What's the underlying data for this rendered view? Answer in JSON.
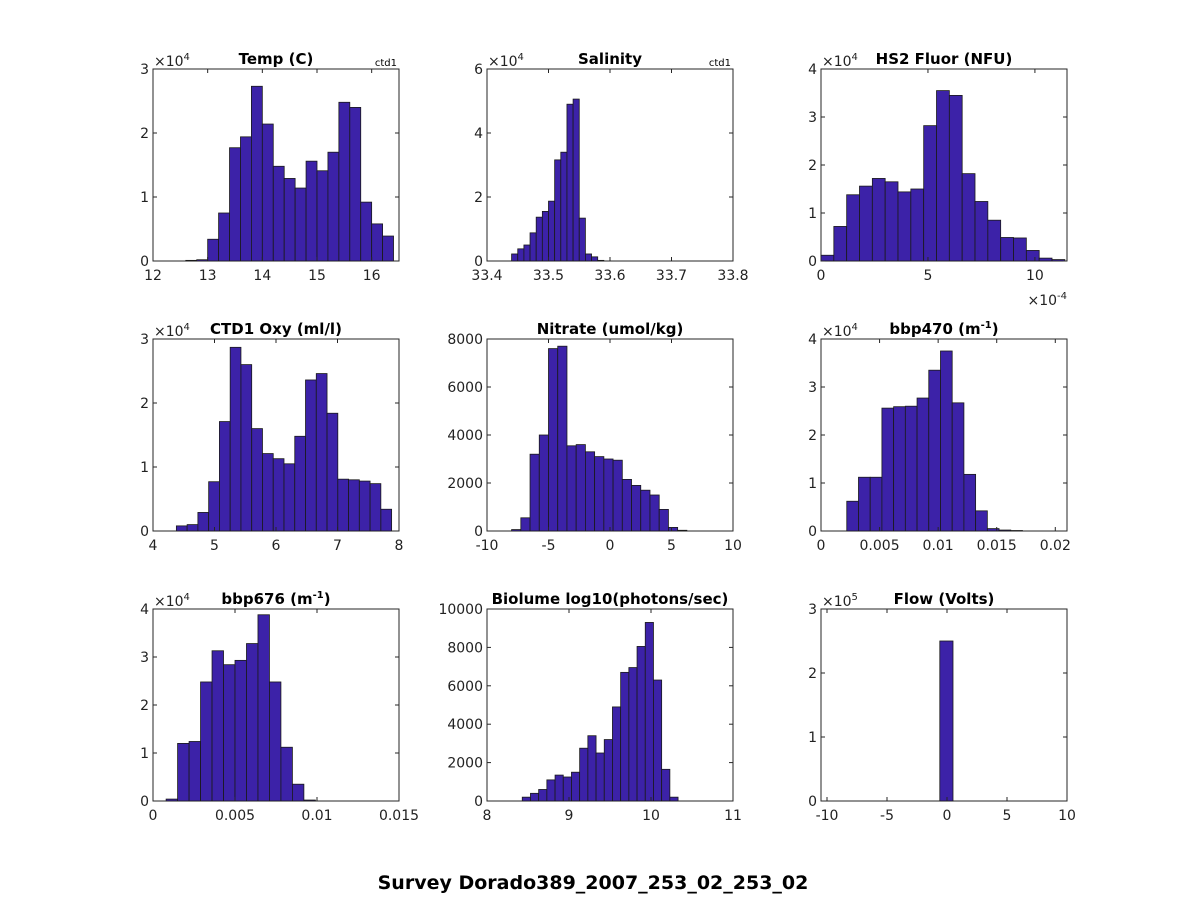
{
  "figure_title": "Survey Dorado389_2007_253_02_253_02",
  "colors": {
    "bar": "#3c22a8",
    "edge": "#1a1a1a",
    "axis": "#262626"
  },
  "chart_data": [
    {
      "type": "bar",
      "title": "Temp (C)",
      "annotation": "ctd1",
      "multiplier": "×10",
      "multiplier_exp": "4",
      "xlim": [
        12,
        16.5
      ],
      "ylim": [
        0,
        3
      ],
      "xticks": [
        12,
        13,
        14,
        15,
        16
      ],
      "xtick_labels": [
        "12",
        "13",
        "14",
        "15",
        "16"
      ],
      "yticks": [
        0,
        1,
        2,
        3
      ],
      "ytick_labels": [
        "0",
        "1",
        "2",
        "3"
      ],
      "bin_start": 12.6,
      "bin_width": 0.2,
      "values": [
        0.01,
        0.02,
        0.34,
        0.75,
        1.77,
        1.94,
        2.73,
        2.14,
        1.48,
        1.29,
        1.14,
        1.56,
        1.41,
        1.7,
        2.48,
        2.4,
        0.92,
        0.58,
        0.39
      ]
    },
    {
      "type": "bar",
      "title": "Salinity",
      "annotation": "ctd1",
      "multiplier": "×10",
      "multiplier_exp": "4",
      "xlim": [
        33.4,
        33.8
      ],
      "ylim": [
        0,
        6
      ],
      "xticks": [
        33.4,
        33.5,
        33.6,
        33.7,
        33.8
      ],
      "xtick_labels": [
        "33.4",
        "33.5",
        "33.6",
        "33.7",
        "33.8"
      ],
      "yticks": [
        0,
        2,
        4,
        6
      ],
      "ytick_labels": [
        "0",
        "2",
        "4",
        "6"
      ],
      "bin_start": 33.44,
      "bin_width": 0.01,
      "values": [
        0.22,
        0.38,
        0.5,
        0.88,
        1.37,
        1.55,
        1.87,
        3.16,
        3.4,
        4.9,
        5.06,
        1.34,
        0.22,
        0.13,
        0.02
      ]
    },
    {
      "type": "bar",
      "title": "HS2 Fluor (NFU)",
      "multiplier": "×10",
      "multiplier_exp": "4",
      "xmultiplier": "×10",
      "xmultiplier_exp": "-4",
      "xlim": [
        0,
        11.5
      ],
      "ylim": [
        0,
        4
      ],
      "xticks": [
        0,
        5,
        10
      ],
      "xtick_labels": [
        "0",
        "5",
        "10"
      ],
      "yticks": [
        0,
        1,
        2,
        3,
        4
      ],
      "ytick_labels": [
        "0",
        "1",
        "2",
        "3",
        "4"
      ],
      "bin_start": 0,
      "bin_width": 0.6,
      "values": [
        0.12,
        0.72,
        1.38,
        1.56,
        1.72,
        1.65,
        1.44,
        1.5,
        2.82,
        3.55,
        3.45,
        1.82,
        1.24,
        0.85,
        0.49,
        0.48,
        0.22,
        0.06,
        0.03
      ]
    },
    {
      "type": "bar",
      "title": "CTD1 Oxy (ml/l)",
      "multiplier": "×10",
      "multiplier_exp": "4",
      "xlim": [
        4,
        8
      ],
      "ylim": [
        0,
        3
      ],
      "xticks": [
        4,
        5,
        6,
        7,
        8
      ],
      "xtick_labels": [
        "4",
        "5",
        "6",
        "7",
        "8"
      ],
      "yticks": [
        0,
        1,
        2,
        3
      ],
      "ytick_labels": [
        "0",
        "1",
        "2",
        "3"
      ],
      "bin_start": 4.38,
      "bin_width": 0.175,
      "values": [
        0.08,
        0.1,
        0.29,
        0.77,
        1.71,
        2.87,
        2.6,
        1.6,
        1.21,
        1.13,
        1.05,
        1.48,
        2.36,
        2.46,
        1.84,
        0.81,
        0.8,
        0.78,
        0.74,
        0.34
      ]
    },
    {
      "type": "bar",
      "title": "Nitrate (umol/kg)",
      "xlim": [
        -10,
        10
      ],
      "ylim": [
        0,
        8000
      ],
      "xticks": [
        -10,
        -5,
        0,
        5,
        10
      ],
      "xtick_labels": [
        "-10",
        "-5",
        "0",
        "5",
        "10"
      ],
      "yticks": [
        0,
        2000,
        4000,
        6000,
        8000
      ],
      "ytick_labels": [
        "0",
        "2000",
        "4000",
        "6000",
        "8000"
      ],
      "bin_start": -8,
      "bin_width": 0.75,
      "values": [
        60,
        550,
        3200,
        4000,
        7600,
        7700,
        3550,
        3600,
        3300,
        3100,
        3000,
        2950,
        2150,
        1900,
        1700,
        1500,
        900,
        150,
        30
      ]
    },
    {
      "type": "bar",
      "title": "bbp470 (m",
      "title_sup": "-1",
      "title_tail": ")",
      "multiplier": "×10",
      "multiplier_exp": "4",
      "xlim": [
        0,
        0.021
      ],
      "ylim": [
        0,
        4
      ],
      "xticks": [
        0,
        0.005,
        0.01,
        0.015,
        0.02
      ],
      "xtick_labels": [
        "0",
        "0.005",
        "0.01",
        "0.015",
        "0.02"
      ],
      "yticks": [
        0,
        1,
        2,
        3,
        4
      ],
      "ytick_labels": [
        "0",
        "1",
        "2",
        "3",
        "4"
      ],
      "bin_start": 0.0022,
      "bin_width": 0.001,
      "values": [
        0.62,
        1.12,
        1.12,
        2.56,
        2.59,
        2.6,
        2.77,
        3.35,
        3.75,
        2.67,
        1.18,
        0.42,
        0.05,
        0.02,
        0.01
      ]
    },
    {
      "type": "bar",
      "title": "bbp676 (m",
      "title_sup": "-1",
      "title_tail": ")",
      "multiplier": "×10",
      "multiplier_exp": "4",
      "xlim": [
        0,
        0.015
      ],
      "ylim": [
        0,
        4
      ],
      "xticks": [
        0,
        0.005,
        0.01,
        0.015
      ],
      "xtick_labels": [
        "0",
        "0.005",
        "0.01",
        "0.015"
      ],
      "yticks": [
        0,
        1,
        2,
        3,
        4
      ],
      "ytick_labels": [
        "0",
        "1",
        "2",
        "3",
        "4"
      ],
      "bin_start": 0.0008,
      "bin_width": 0.0007,
      "values": [
        0.04,
        1.2,
        1.24,
        2.48,
        3.13,
        2.84,
        2.93,
        3.28,
        3.88,
        2.48,
        1.12,
        0.35,
        0.02
      ]
    },
    {
      "type": "bar",
      "title": "Biolume log10(photons/sec)",
      "xlim": [
        8,
        11
      ],
      "ylim": [
        0,
        10000
      ],
      "xticks": [
        8,
        9,
        10,
        11
      ],
      "xtick_labels": [
        "8",
        "9",
        "10",
        "11"
      ],
      "yticks": [
        0,
        2000,
        4000,
        6000,
        8000,
        10000
      ],
      "ytick_labels": [
        "0",
        "2000",
        "4000",
        "6000",
        "8000",
        "10000"
      ],
      "bin_start": 8.43,
      "bin_width": 0.1,
      "values": [
        200,
        400,
        600,
        1100,
        1350,
        1250,
        1500,
        2750,
        3400,
        2500,
        3200,
        4900,
        6700,
        6950,
        8050,
        9300,
        6300,
        1650,
        200
      ]
    },
    {
      "type": "bar",
      "title": "Flow (Volts)",
      "multiplier": "×10",
      "multiplier_exp": "5",
      "xlim": [
        -10.5,
        10
      ],
      "ylim": [
        0,
        3
      ],
      "xticks": [
        -10,
        -5,
        0,
        5,
        10
      ],
      "xtick_labels": [
        "-10",
        "-5",
        "0",
        "5",
        "10"
      ],
      "yticks": [
        0,
        1,
        2,
        3
      ],
      "ytick_labels": [
        "0",
        "1",
        "2",
        "3"
      ],
      "bin_start": -0.6,
      "bin_width": 1.1,
      "values": [
        2.5
      ]
    }
  ]
}
